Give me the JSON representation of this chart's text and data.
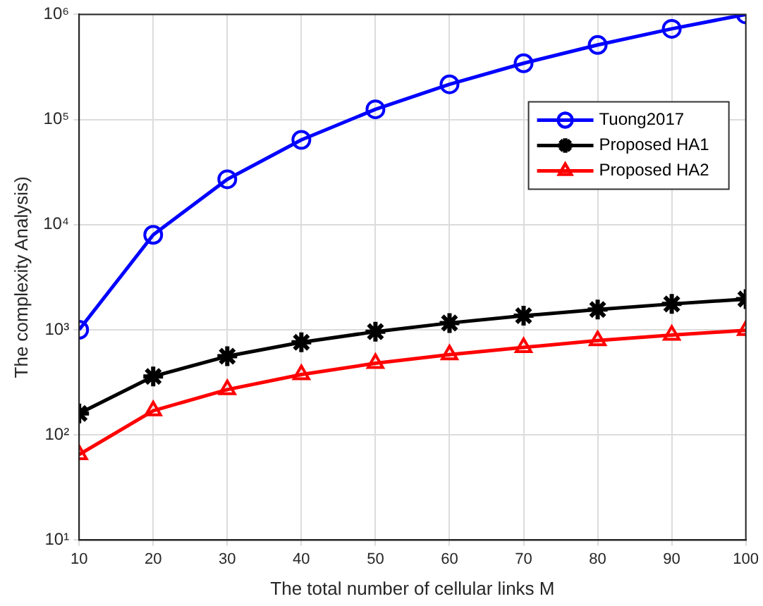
{
  "chart_data": {
    "type": "line",
    "xlabel": "The total number of cellular links M",
    "ylabel": "The complexity Analysis)",
    "x": [
      10,
      20,
      30,
      40,
      50,
      60,
      70,
      80,
      90,
      100
    ],
    "series": [
      {
        "name": "Tuong2017",
        "color": "#0000ff",
        "marker": "circle",
        "values": [
          1000,
          8000,
          27000,
          64000,
          125000,
          216000,
          343000,
          512000,
          729000,
          1000000
        ]
      },
      {
        "name": "Proposed HA1",
        "color": "#000000",
        "marker": "cross",
        "values": [
          160,
          360,
          560,
          760,
          960,
          1160,
          1360,
          1560,
          1760,
          1960
        ]
      },
      {
        "name": "Proposed HA2",
        "color": "#ff0000",
        "marker": "triangle",
        "values": [
          65,
          170,
          270,
          375,
          480,
          580,
          680,
          790,
          890,
          990
        ]
      }
    ],
    "log": "y",
    "xlim": [
      10,
      100
    ],
    "xticks": [
      10,
      20,
      30,
      40,
      50,
      60,
      70,
      80,
      90,
      100
    ],
    "ylim": [
      10,
      1000000
    ],
    "yticks": [
      {
        "value": 10,
        "label": "10¹"
      },
      {
        "value": 100,
        "label": "10²"
      },
      {
        "value": 1000,
        "label": "10³"
      },
      {
        "value": 10000,
        "label": "10⁴"
      },
      {
        "value": 100000,
        "label": "10⁵"
      },
      {
        "value": 1000000,
        "label": "10⁶"
      }
    ],
    "grid": true,
    "legend": "top right",
    "line_style": "solid"
  }
}
